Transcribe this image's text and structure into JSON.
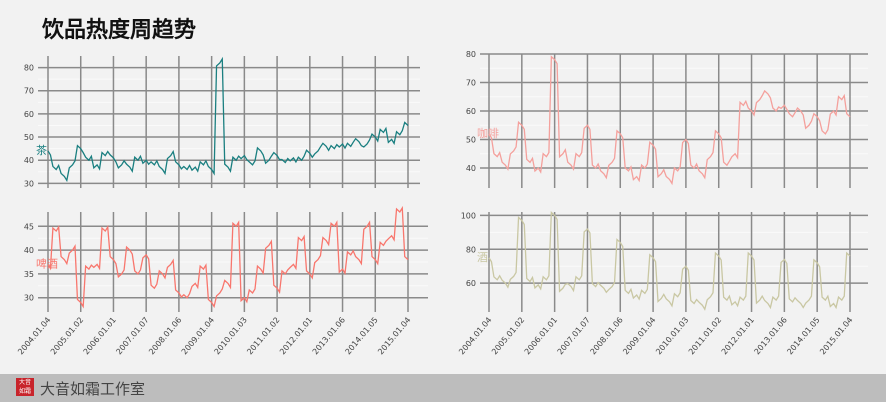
{
  "title": "饮品热度周趋势",
  "footer": {
    "studio": "大音如霜工作室",
    "logo_text": "大音如霜"
  },
  "chart_data": [
    {
      "type": "line",
      "name": "茶",
      "color": "#1a7f80",
      "ylim": [
        28,
        85
      ],
      "yticks": [
        30,
        40,
        50,
        60,
        70,
        80
      ],
      "x_range": [
        "2004.01.04",
        "2015.01.04"
      ],
      "values": [
        44,
        36,
        33,
        38,
        45,
        40,
        38,
        42,
        41,
        38,
        37,
        40,
        40,
        38,
        36,
        42,
        38,
        36,
        37,
        38,
        36,
        82,
        37,
        40,
        42,
        38,
        44,
        40,
        42,
        39,
        41,
        40,
        43,
        44,
        46,
        45,
        47,
        46,
        48,
        47,
        50,
        52,
        49,
        51,
        55
      ]
    },
    {
      "type": "line",
      "name": "咖啡",
      "color": "#f4a09c",
      "ylim": [
        33,
        80
      ],
      "yticks": [
        40,
        50,
        60,
        70,
        80
      ],
      "x_range": [
        "2004.01.04",
        "2015.01.04"
      ],
      "values": [
        52,
        44,
        41,
        46,
        55,
        42,
        40,
        44,
        78,
        45,
        41,
        44,
        55,
        40,
        38,
        42,
        52,
        39,
        37,
        40,
        48,
        38,
        36,
        39,
        50,
        40,
        38,
        44,
        52,
        41,
        45,
        62,
        60,
        64,
        66,
        60,
        62,
        58,
        60,
        55,
        58,
        52,
        60,
        64,
        58
      ]
    },
    {
      "type": "line",
      "name": "啤酒",
      "color": "#f8766d",
      "ylim": [
        27,
        48
      ],
      "yticks": [
        30,
        35,
        40,
        45
      ],
      "x_range": [
        "2004.01.04",
        "2015.01.04"
      ],
      "values": [
        37,
        44,
        38,
        40,
        29,
        36,
        37,
        44,
        38,
        35,
        40,
        35,
        39,
        32,
        35,
        37,
        31,
        30,
        33,
        36,
        29,
        31,
        33,
        45,
        30,
        31,
        36,
        41,
        32,
        35,
        37,
        42,
        35,
        38,
        42,
        45,
        36,
        39,
        38,
        45,
        38,
        41,
        43,
        48,
        38
      ]
    },
    {
      "type": "line",
      "name": "酒",
      "color": "#c9c7a3",
      "ylim": [
        43,
        102
      ],
      "yticks": [
        60,
        80,
        100
      ],
      "x_range": [
        "2004.01.04",
        "2015.01.04"
      ],
      "values": [
        75,
        62,
        60,
        64,
        97,
        61,
        59,
        62,
        100,
        57,
        58,
        62,
        92,
        58,
        57,
        58,
        84,
        54,
        53,
        54,
        75,
        51,
        49,
        52,
        70,
        48,
        47,
        52,
        76,
        50,
        49,
        50,
        76,
        50,
        48,
        50,
        74,
        49,
        48,
        50,
        72,
        50,
        48,
        50,
        76
      ]
    }
  ],
  "x_tick_labels": [
    "2004.01.04",
    "2005.01.02",
    "2006.01.01",
    "2007.01.07",
    "2008.01.06",
    "2009.01.04",
    "2010.01.03",
    "2011.01.02",
    "2012.01.01",
    "2013.01.06",
    "2014.01.05",
    "2015.01.04"
  ]
}
